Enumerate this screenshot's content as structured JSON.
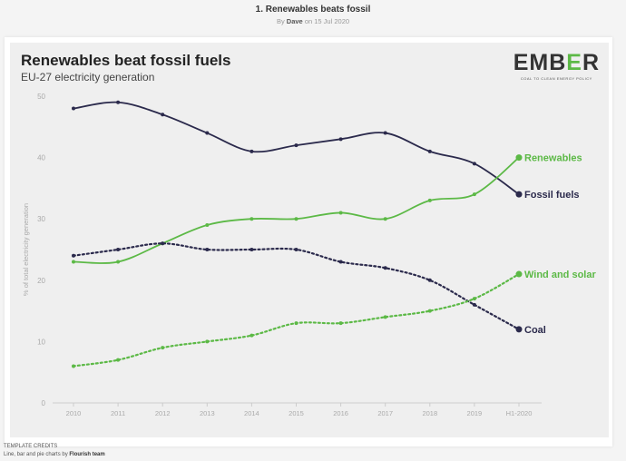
{
  "page": {
    "title": "1. Renewables beats fossil",
    "by": "By",
    "author": "Dave",
    "on": "on 15 Jul 2020"
  },
  "logo": {
    "text_pre": "EMB",
    "text_e": "E",
    "text_post": "R",
    "tagline": "COAL TO CLEAN ENERGY POLICY"
  },
  "credits": {
    "heading": "TEMPLATE CREDITS",
    "text": "Line, bar and pie charts by",
    "team": "Flourish team"
  },
  "chart_data": {
    "type": "line",
    "title": "Renewables beat fossil fuels",
    "subtitle": "EU-27 electricity generation",
    "ylabel": "% of total electricity generation",
    "xlabel": "",
    "ylim": [
      0,
      50
    ],
    "yticks": [
      0,
      10,
      20,
      30,
      40,
      50
    ],
    "categories": [
      "2010",
      "2011",
      "2012",
      "2013",
      "2014",
      "2015",
      "2016",
      "2017",
      "2018",
      "2019",
      "H1-2020"
    ],
    "series": [
      {
        "name": "Fossil fuels",
        "color": "#2b2a4c",
        "dashed": false,
        "values": [
          48,
          49,
          47,
          44,
          41,
          42,
          43,
          44,
          41,
          39,
          34
        ]
      },
      {
        "name": "Renewables",
        "color": "#5cb946",
        "dashed": false,
        "values": [
          23,
          23,
          26,
          29,
          30,
          30,
          31,
          30,
          33,
          34,
          40
        ]
      },
      {
        "name": "Coal",
        "color": "#2b2a4c",
        "dashed": true,
        "values": [
          24,
          25,
          26,
          25,
          25,
          25,
          23,
          22,
          20,
          16,
          12
        ]
      },
      {
        "name": "Wind and solar",
        "color": "#5cb946",
        "dashed": true,
        "values": [
          6,
          7,
          9,
          10,
          11,
          13,
          13,
          14,
          15,
          17,
          21
        ]
      }
    ]
  }
}
